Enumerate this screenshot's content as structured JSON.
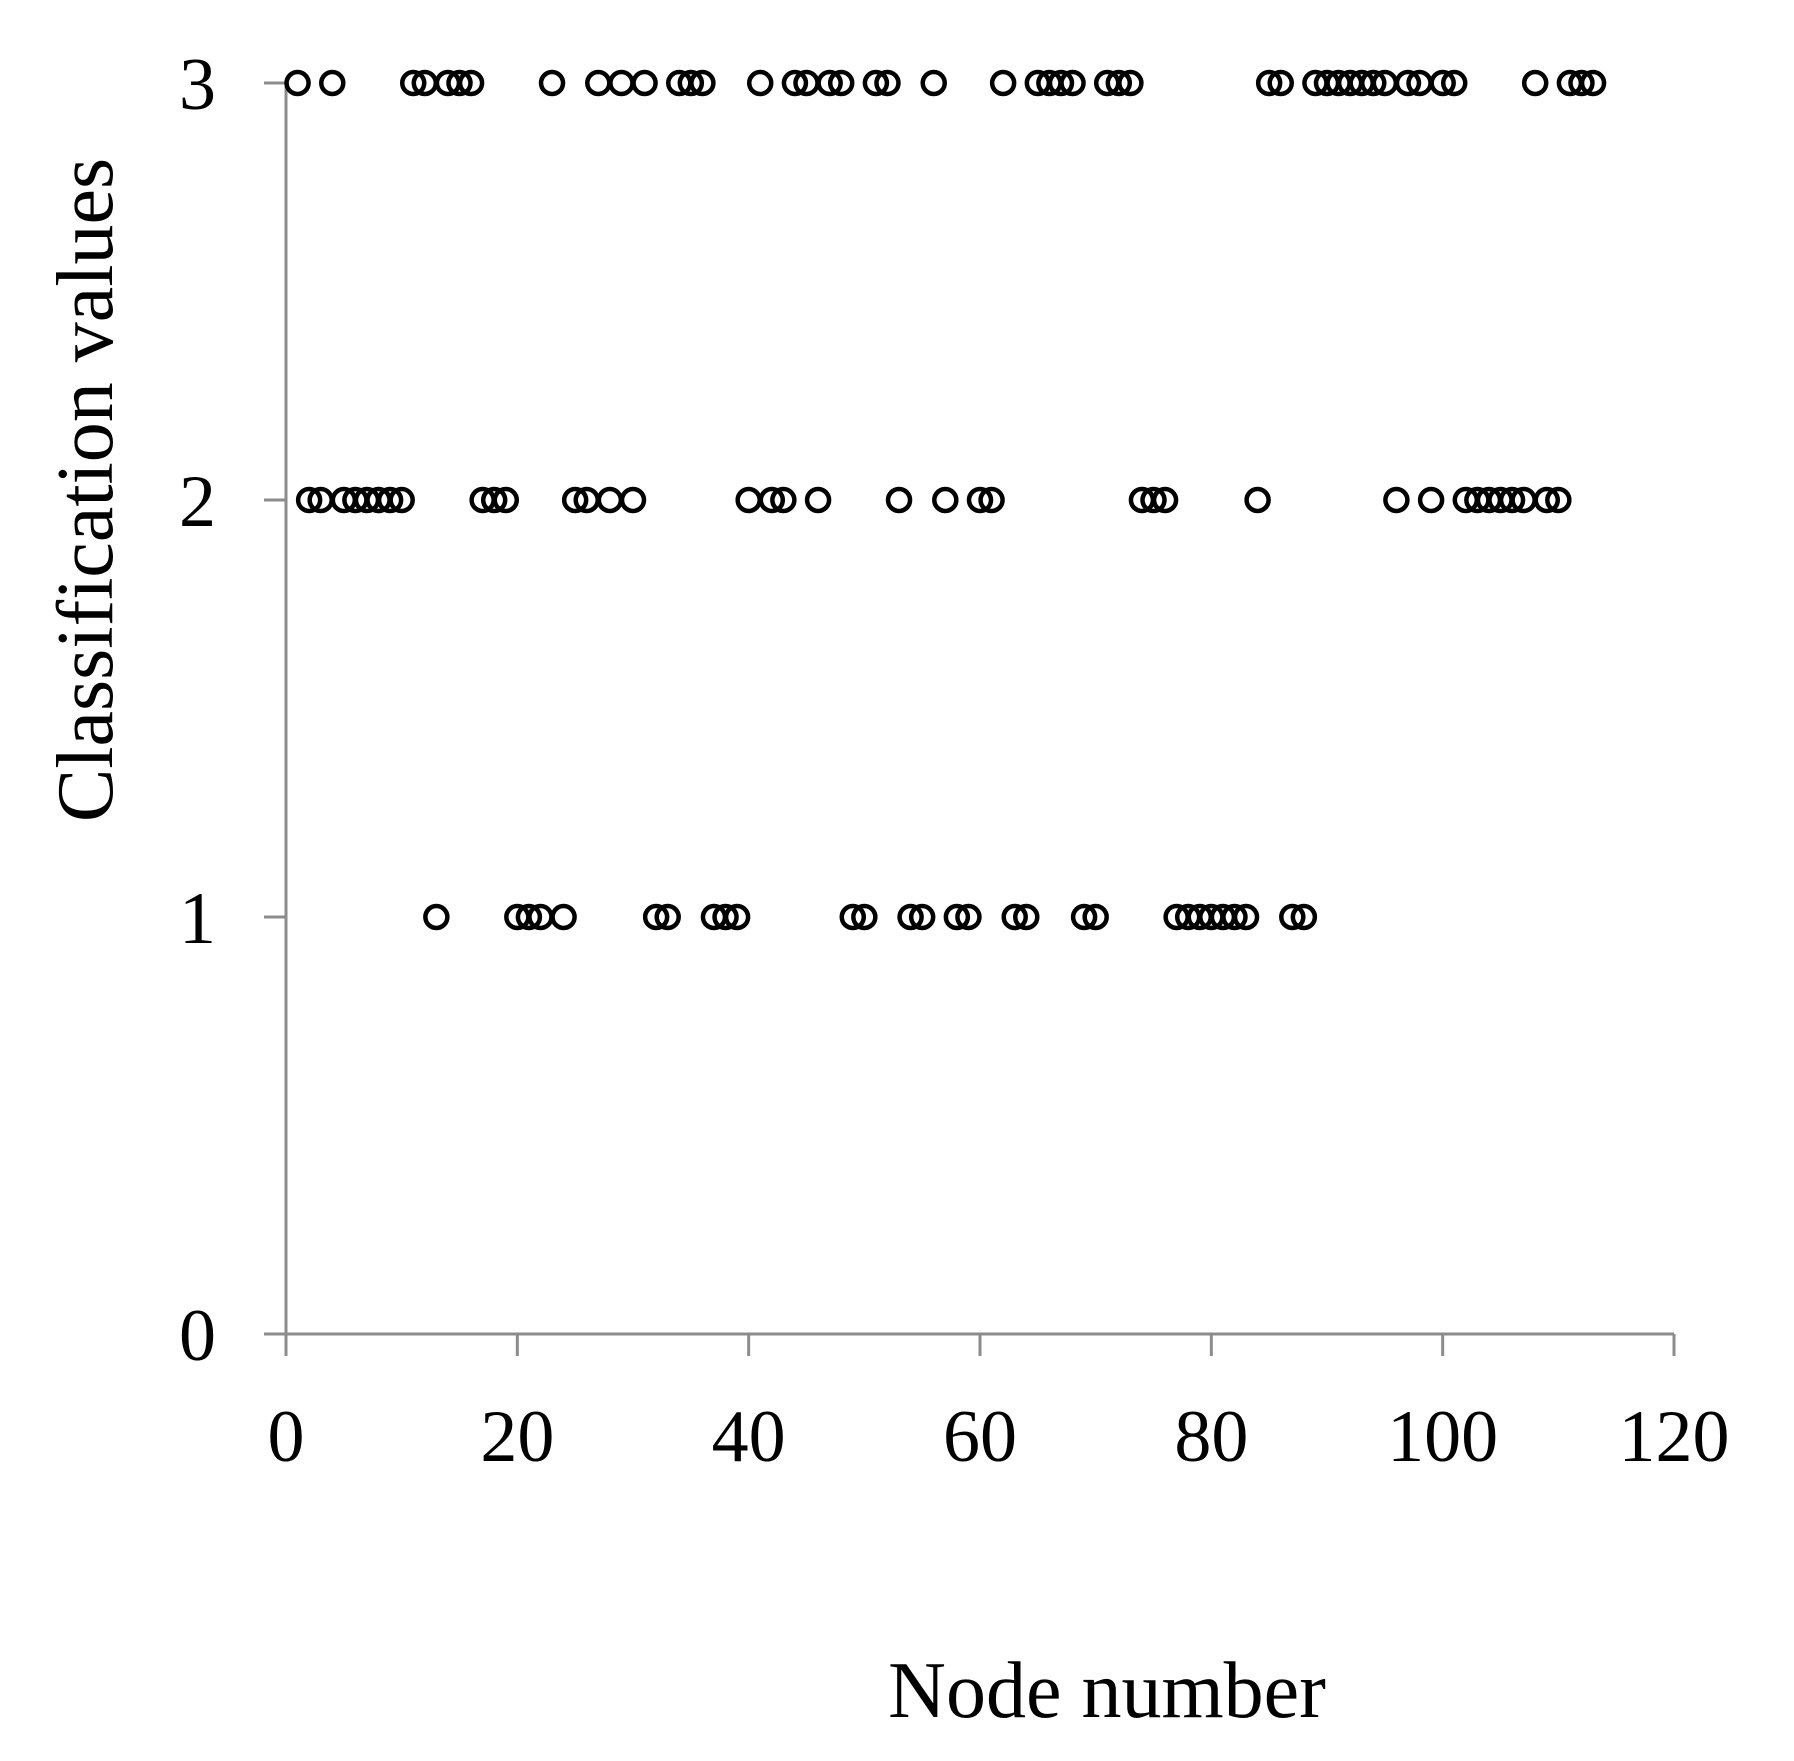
{
  "chart_data": {
    "type": "scatter",
    "title": "",
    "xlabel": "Node number",
    "ylabel": "Classification values",
    "xlim": [
      0,
      120
    ],
    "ylim": [
      0,
      3
    ],
    "xticks": [
      0,
      20,
      40,
      60,
      80,
      100,
      120
    ],
    "yticks": [
      0,
      1,
      2,
      3
    ],
    "grid": false,
    "legend": "none",
    "marker": "hollow-circle",
    "colors": {
      "marker": "#000000",
      "axis": "#8c8c8c",
      "text": "#000000"
    },
    "series": [
      {
        "points": [
          [
            1,
            3
          ],
          [
            4,
            3
          ],
          [
            11,
            3
          ],
          [
            12,
            3
          ],
          [
            14,
            3
          ],
          [
            15,
            3
          ],
          [
            16,
            3
          ],
          [
            23,
            3
          ],
          [
            27,
            3
          ],
          [
            29,
            3
          ],
          [
            31,
            3
          ],
          [
            34,
            3
          ],
          [
            35,
            3
          ],
          [
            36,
            3
          ],
          [
            41,
            3
          ],
          [
            44,
            3
          ],
          [
            45,
            3
          ],
          [
            47,
            3
          ],
          [
            48,
            3
          ],
          [
            51,
            3
          ],
          [
            52,
            3
          ],
          [
            56,
            3
          ],
          [
            62,
            3
          ],
          [
            65,
            3
          ],
          [
            66,
            3
          ],
          [
            67,
            3
          ],
          [
            68,
            3
          ],
          [
            71,
            3
          ],
          [
            72,
            3
          ],
          [
            73,
            3
          ],
          [
            85,
            3
          ],
          [
            86,
            3
          ],
          [
            89,
            3
          ],
          [
            90,
            3
          ],
          [
            91,
            3
          ],
          [
            92,
            3
          ],
          [
            93,
            3
          ],
          [
            94,
            3
          ],
          [
            95,
            3
          ],
          [
            97,
            3
          ],
          [
            98,
            3
          ],
          [
            100,
            3
          ],
          [
            101,
            3
          ],
          [
            108,
            3
          ],
          [
            111,
            3
          ],
          [
            112,
            3
          ],
          [
            113,
            3
          ],
          [
            2,
            2
          ],
          [
            3,
            2
          ],
          [
            5,
            2
          ],
          [
            6,
            2
          ],
          [
            7,
            2
          ],
          [
            8,
            2
          ],
          [
            9,
            2
          ],
          [
            10,
            2
          ],
          [
            17,
            2
          ],
          [
            18,
            2
          ],
          [
            19,
            2
          ],
          [
            25,
            2
          ],
          [
            26,
            2
          ],
          [
            28,
            2
          ],
          [
            30,
            2
          ],
          [
            40,
            2
          ],
          [
            42,
            2
          ],
          [
            43,
            2
          ],
          [
            46,
            2
          ],
          [
            53,
            2
          ],
          [
            57,
            2
          ],
          [
            60,
            2
          ],
          [
            61,
            2
          ],
          [
            74,
            2
          ],
          [
            75,
            2
          ],
          [
            76,
            2
          ],
          [
            84,
            2
          ],
          [
            96,
            2
          ],
          [
            99,
            2
          ],
          [
            102,
            2
          ],
          [
            103,
            2
          ],
          [
            104,
            2
          ],
          [
            105,
            2
          ],
          [
            106,
            2
          ],
          [
            107,
            2
          ],
          [
            109,
            2
          ],
          [
            110,
            2
          ],
          [
            13,
            1
          ],
          [
            20,
            1
          ],
          [
            21,
            1
          ],
          [
            22,
            1
          ],
          [
            24,
            1
          ],
          [
            32,
            1
          ],
          [
            33,
            1
          ],
          [
            37,
            1
          ],
          [
            38,
            1
          ],
          [
            39,
            1
          ],
          [
            49,
            1
          ],
          [
            50,
            1
          ],
          [
            54,
            1
          ],
          [
            55,
            1
          ],
          [
            58,
            1
          ],
          [
            59,
            1
          ],
          [
            63,
            1
          ],
          [
            64,
            1
          ],
          [
            69,
            1
          ],
          [
            70,
            1
          ],
          [
            77,
            1
          ],
          [
            78,
            1
          ],
          [
            79,
            1
          ],
          [
            80,
            1
          ],
          [
            81,
            1
          ],
          [
            82,
            1
          ],
          [
            83,
            1
          ],
          [
            87,
            1
          ],
          [
            88,
            1
          ]
        ]
      }
    ]
  }
}
